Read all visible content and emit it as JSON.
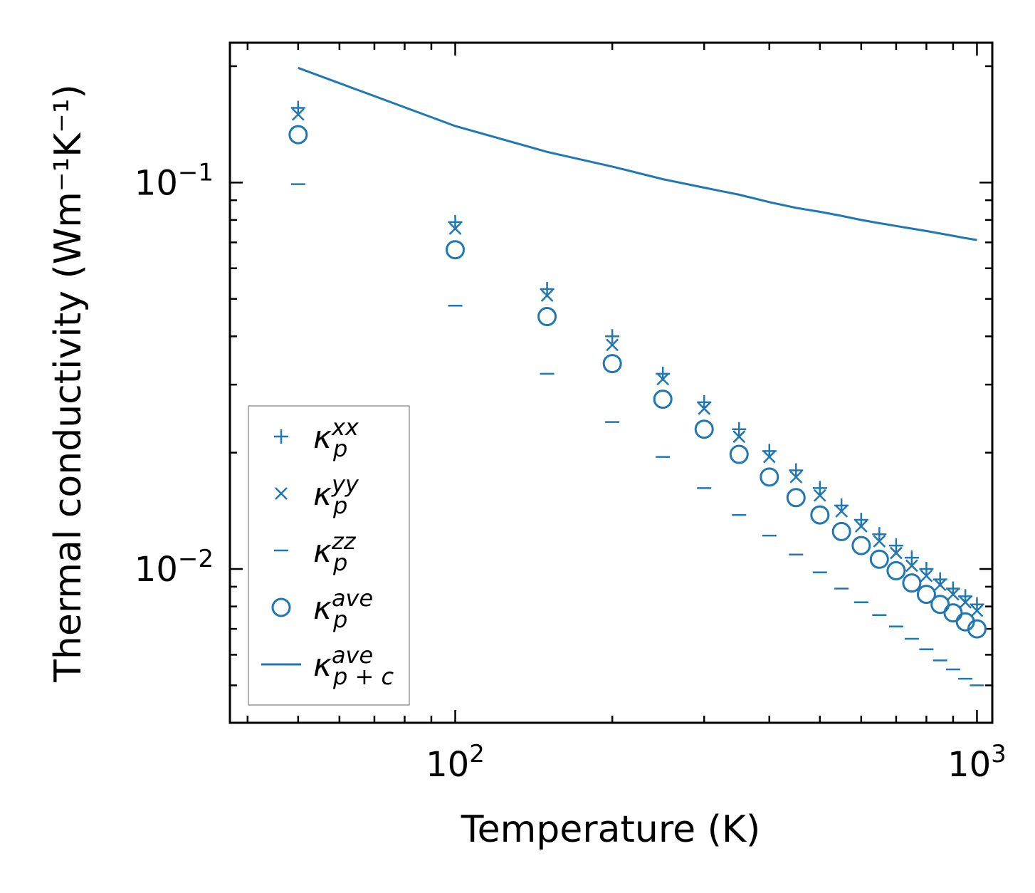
{
  "chart_data": {
    "type": "scatter",
    "xscale": "log",
    "yscale": "log",
    "xlabel": "Temperature (K)",
    "ylabel": "Thermal conductivity (Wm⁻¹K⁻¹)",
    "xlim": [
      37,
      1070
    ],
    "ylim": [
      0.004,
      0.23
    ],
    "x_ticks": [
      {
        "value": 100,
        "base": "10",
        "exp": "2"
      },
      {
        "value": 1000,
        "base": "10",
        "exp": "3"
      }
    ],
    "y_ticks": [
      {
        "value": 0.01,
        "base": "10",
        "exp": "−2"
      },
      {
        "value": 0.1,
        "base": "10",
        "exp": "−1"
      }
    ],
    "color": "#1f77b4",
    "x": [
      50,
      100,
      150,
      200,
      250,
      300,
      350,
      400,
      450,
      500,
      550,
      600,
      650,
      700,
      750,
      800,
      850,
      900,
      950,
      1000
    ],
    "series": [
      {
        "name": "kxx",
        "kappa": "κ",
        "sub": "p",
        "sup": "xx",
        "marker": "plus",
        "values": [
          0.156,
          0.079,
          0.053,
          0.04,
          0.032,
          0.027,
          0.023,
          0.0202,
          0.018,
          0.0162,
          0.0146,
          0.0134,
          0.0123,
          0.0115,
          0.0107,
          0.01,
          0.0094,
          0.0089,
          0.0085,
          0.0081
        ]
      },
      {
        "name": "kyy",
        "kappa": "κ",
        "sub": "p",
        "sup": "yy",
        "marker": "x",
        "values": [
          0.15,
          0.076,
          0.051,
          0.038,
          0.031,
          0.026,
          0.022,
          0.0195,
          0.0173,
          0.0155,
          0.0141,
          0.0129,
          0.0118,
          0.011,
          0.0102,
          0.0096,
          0.0091,
          0.0086,
          0.0082,
          0.0078
        ]
      },
      {
        "name": "kzz",
        "kappa": "κ",
        "sub": "p",
        "sup": "zz",
        "marker": "dash",
        "values": [
          0.099,
          0.048,
          0.032,
          0.024,
          0.0195,
          0.0162,
          0.0138,
          0.0122,
          0.0109,
          0.0098,
          0.0089,
          0.0082,
          0.0076,
          0.0071,
          0.0066,
          0.0062,
          0.0058,
          0.0055,
          0.0052,
          0.005
        ]
      },
      {
        "name": "kave",
        "kappa": "κ",
        "sub": "p",
        "sup": "ave",
        "marker": "circle",
        "values": [
          0.133,
          0.067,
          0.045,
          0.034,
          0.0275,
          0.023,
          0.0198,
          0.0173,
          0.0153,
          0.0138,
          0.0125,
          0.0115,
          0.0106,
          0.0099,
          0.0092,
          0.0086,
          0.0081,
          0.0077,
          0.0073,
          0.007
        ]
      },
      {
        "name": "kpc",
        "kappa": "κ",
        "sub": "p + c",
        "sup": "ave",
        "marker": "line",
        "x": [
          50,
          100,
          150,
          200,
          250,
          300,
          350,
          400,
          450,
          500,
          550,
          600,
          650,
          700,
          750,
          800,
          850,
          900,
          950,
          1000
        ],
        "values": [
          0.198,
          0.14,
          0.12,
          0.11,
          0.102,
          0.097,
          0.093,
          0.089,
          0.086,
          0.084,
          0.082,
          0.08,
          0.0785,
          0.0772,
          0.076,
          0.0749,
          0.0738,
          0.0728,
          0.0718,
          0.071
        ]
      }
    ],
    "legend": {
      "position": "lower-left"
    }
  }
}
